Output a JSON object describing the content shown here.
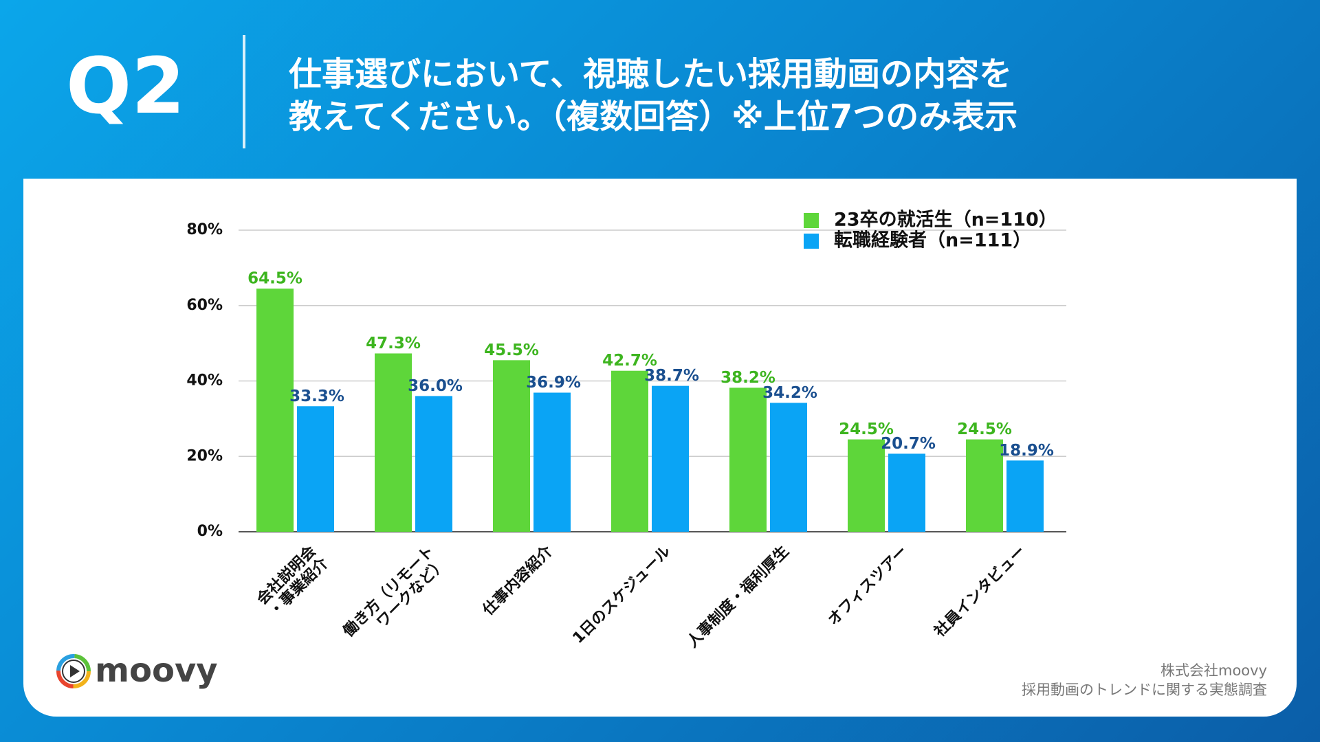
{
  "header": {
    "label": "Q2",
    "title": [
      "仕事選びにおいて、視聴したい採用動画の内容を",
      "教えてください。（複数回答）※上位7つのみ表示"
    ]
  },
  "chart_data": {
    "type": "bar",
    "categories": [
      "会社説明会\n・事業紹介",
      "働き方（リモート\nワークなど）",
      "仕事内容紹介",
      "1日のスケジュール",
      "人事制度・福利厚生",
      "オフィスツアー",
      "社員インタビュー"
    ],
    "series": [
      {
        "name": "23卒の就活生（n=110）",
        "color": "#5ed63a",
        "label_color": "#3db51f",
        "values": [
          64.5,
          47.3,
          45.5,
          42.7,
          38.2,
          24.5,
          24.5
        ],
        "value_labels": [
          "64.5%",
          "47.3%",
          "45.5%",
          "42.7%",
          "38.2%",
          "24.5%",
          "24.5%"
        ]
      },
      {
        "name": "転職経験者（n=111）",
        "color": "#0aa4f5",
        "label_color": "#1a4f8f",
        "values": [
          33.3,
          36.0,
          36.9,
          38.7,
          34.2,
          20.7,
          18.9
        ],
        "value_labels": [
          "33.3%",
          "36.0%",
          "36.9%",
          "38.7%",
          "34.2%",
          "20.7%",
          "18.9%"
        ]
      }
    ],
    "ylim": [
      0,
      80
    ],
    "yticks": [
      {
        "value": 0,
        "label": "0%"
      },
      {
        "value": 20,
        "label": "20%"
      },
      {
        "value": 40,
        "label": "40%"
      },
      {
        "value": 60,
        "label": "60%"
      },
      {
        "value": 80,
        "label": "80%"
      }
    ],
    "grid": true,
    "legend": "top-right"
  },
  "footer": {
    "logo": "moovy",
    "credit": [
      "株式会社moovy",
      "採用動画のトレンドに関する実態調査"
    ]
  }
}
